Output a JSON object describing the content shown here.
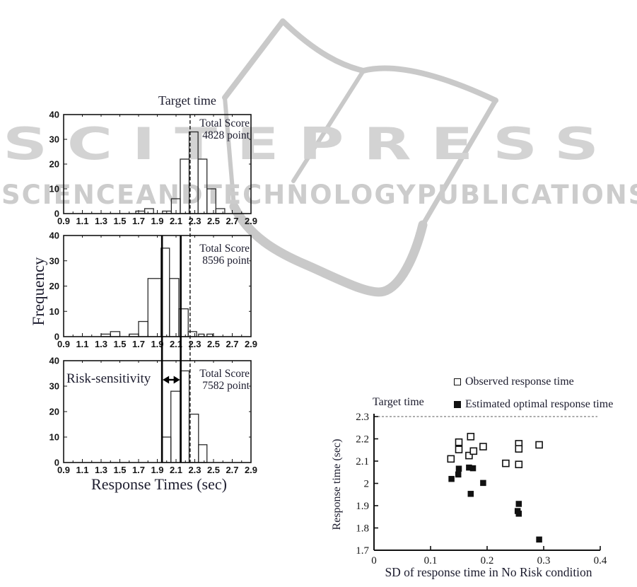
{
  "watermark": {
    "brand": "SCITEPRESS",
    "tagline": [
      "SCIENCE",
      "AND",
      "TECHNOLOGY",
      "PUBLICATIONS"
    ],
    "colors": {
      "letters": "#d3d3d3",
      "tagline": "#cccccc",
      "book": "#c9c9c9"
    }
  },
  "chart_data": [
    {
      "type": "histogram",
      "position": "left-top",
      "title": "Target time",
      "ylabel": "Frequency",
      "annotation": {
        "line1": "Total Score",
        "line2": "4828 point"
      },
      "xlim": [
        0.9,
        2.9
      ],
      "ylim": [
        0,
        40
      ],
      "x_tick_labels": [
        "0.9",
        "1.1",
        "1.3",
        "1.5",
        "1.7",
        "1.9",
        "2.1",
        "2.3",
        "2.5",
        "2.7",
        "2.9"
      ],
      "y_tick_labels": [
        "0",
        "10",
        "20",
        "30",
        "40"
      ],
      "dashed_target_x": 2.25,
      "bars": [
        {
          "x0": 1.67,
          "x1": 1.765,
          "h": 1
        },
        {
          "x0": 1.765,
          "x1": 1.86,
          "h": 2
        },
        {
          "x0": 1.955,
          "x1": 2.05,
          "h": 1
        },
        {
          "x0": 2.05,
          "x1": 2.145,
          "h": 6
        },
        {
          "x0": 2.145,
          "x1": 2.24,
          "h": 22
        },
        {
          "x0": 2.24,
          "x1": 2.335,
          "h": 33
        },
        {
          "x0": 2.335,
          "x1": 2.43,
          "h": 22
        },
        {
          "x0": 2.43,
          "x1": 2.525,
          "h": 10
        },
        {
          "x0": 2.525,
          "x1": 2.62,
          "h": 2
        }
      ]
    },
    {
      "type": "histogram",
      "position": "left-middle",
      "annotation": {
        "line1": "Total Score",
        "line2": "8596 point"
      },
      "xlim": [
        0.9,
        2.9
      ],
      "ylim": [
        0,
        40
      ],
      "x_tick_labels": [
        "0.9",
        "1.1",
        "1.3",
        "1.5",
        "1.7",
        "1.9",
        "2.1",
        "2.3",
        "2.5",
        "2.7",
        "2.9"
      ],
      "y_tick_labels": [
        "0",
        "10",
        "20",
        "30",
        "40"
      ],
      "dashed_target_x": 2.25,
      "solid_lines_x": [
        1.95,
        2.15
      ],
      "bars": [
        {
          "x0": 1.3,
          "x1": 1.4,
          "h": 1
        },
        {
          "x0": 1.4,
          "x1": 1.5,
          "h": 2
        },
        {
          "x0": 1.6,
          "x1": 1.7,
          "h": 1
        },
        {
          "x0": 1.7,
          "x1": 1.8,
          "h": 6
        },
        {
          "x0": 1.8,
          "x1": 1.94,
          "h": 23
        },
        {
          "x0": 1.94,
          "x1": 2.03,
          "h": 35
        },
        {
          "x0": 2.03,
          "x1": 2.13,
          "h": 23
        },
        {
          "x0": 2.13,
          "x1": 2.23,
          "h": 11
        },
        {
          "x0": 2.23,
          "x1": 2.32,
          "h": 2
        },
        {
          "x0": 2.34,
          "x1": 2.4,
          "h": 1
        },
        {
          "x0": 2.43,
          "x1": 2.49,
          "h": 1
        }
      ]
    },
    {
      "type": "histogram",
      "position": "left-bottom",
      "xlabel": "Response Times (sec)",
      "risk_label": "Risk-sensitivity",
      "annotation": {
        "line1": "Total Score",
        "line2": "7582 point"
      },
      "xlim": [
        0.9,
        2.9
      ],
      "ylim": [
        0,
        40
      ],
      "x_tick_labels": [
        "0.9",
        "1.1",
        "1.3",
        "1.5",
        "1.7",
        "1.9",
        "2.1",
        "2.3",
        "2.5",
        "2.7",
        "2.9"
      ],
      "y_tick_labels": [
        "0",
        "10",
        "20",
        "30",
        "40"
      ],
      "dashed_target_x": 2.25,
      "solid_lines_x": [
        1.95,
        2.15
      ],
      "bars": [
        {
          "x0": 1.95,
          "x1": 2.045,
          "h": 10
        },
        {
          "x0": 2.045,
          "x1": 2.145,
          "h": 28
        },
        {
          "x0": 2.145,
          "x1": 2.24,
          "h": 36
        },
        {
          "x0": 2.24,
          "x1": 2.34,
          "h": 19
        },
        {
          "x0": 2.34,
          "x1": 2.43,
          "h": 7
        }
      ]
    },
    {
      "type": "scatter",
      "position": "right-bottom",
      "xlabel": "SD of response time in No Risk condition",
      "ylabel": "Response time (sec)",
      "xlim": [
        0,
        0.4
      ],
      "ylim": [
        1.7,
        2.3
      ],
      "x_tick_labels": [
        "0",
        "0.1",
        "0.2",
        "0.3",
        "0.4"
      ],
      "y_tick_labels": [
        "2.3",
        "2.2",
        "2.1",
        "2",
        "1.9",
        "1.8",
        "1.7"
      ],
      "target_label": "Target time",
      "target_line_y": 2.3,
      "legend": [
        {
          "marker": "open-square",
          "label": "Observed response time"
        },
        {
          "marker": "filled-square",
          "label": "Estimated optimal response time"
        }
      ],
      "series": [
        {
          "name": "Observed response time",
          "marker": "open-square",
          "points": [
            [
              0.136,
              2.11
            ],
            [
              0.15,
              2.185
            ],
            [
              0.15,
              2.152
            ],
            [
              0.171,
              2.21
            ],
            [
              0.168,
              2.125
            ],
            [
              0.176,
              2.145
            ],
            [
              0.193,
              2.165
            ],
            [
              0.233,
              2.09
            ],
            [
              0.256,
              2.178
            ],
            [
              0.256,
              2.155
            ],
            [
              0.256,
              2.085
            ],
            [
              0.292,
              2.173
            ]
          ]
        },
        {
          "name": "Estimated optimal response time",
          "marker": "filled-square",
          "points": [
            [
              0.137,
              2.02
            ],
            [
              0.149,
              2.04
            ],
            [
              0.15,
              2.066
            ],
            [
              0.168,
              2.071
            ],
            [
              0.175,
              2.068
            ],
            [
              0.171,
              1.953
            ],
            [
              0.193,
              2.002
            ],
            [
              0.256,
              1.908
            ],
            [
              0.254,
              1.876
            ],
            [
              0.256,
              1.864
            ],
            [
              0.292,
              1.748
            ]
          ]
        }
      ]
    }
  ]
}
